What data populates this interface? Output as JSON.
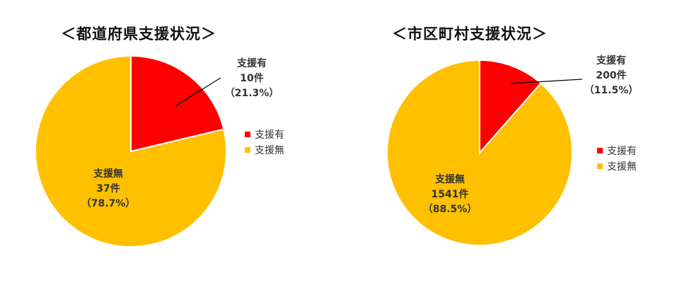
{
  "chart_data": [
    {
      "type": "pie",
      "title": "＜都道府県支援状況＞",
      "slices": [
        {
          "label": "支援有",
          "value": 10,
          "count_text": "10件",
          "percent_text": "（21.3%）",
          "color": "#FF0000"
        },
        {
          "label": "支援無",
          "value": 37,
          "count_text": "37件",
          "percent_text": "（78.7%）",
          "color": "#FFC000"
        }
      ],
      "legend": [
        "支援有",
        "支援無"
      ],
      "legend_position": "right"
    },
    {
      "type": "pie",
      "title": "＜市区町村支援状況＞",
      "slices": [
        {
          "label": "支援有",
          "value": 200,
          "count_text": "200件",
          "percent_text": "（11.5%）",
          "color": "#FF0000"
        },
        {
          "label": "支援無",
          "value": 1541,
          "count_text": "1541件",
          "percent_text": "（88.5%）",
          "color": "#FFC000"
        }
      ],
      "legend": [
        "支援有",
        "支援無"
      ],
      "legend_position": "right"
    }
  ]
}
